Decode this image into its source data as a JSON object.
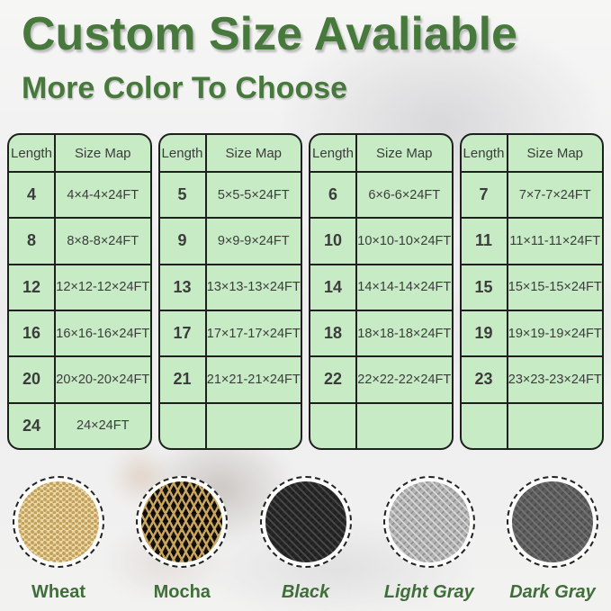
{
  "title": {
    "text": "Custom Size Avaliable"
  },
  "subtitle": {
    "text": "More Color To Choose"
  },
  "colors": {
    "heading_green": "#47793c",
    "label_green": "#3f6f38",
    "table_bg": "#c7ebc5",
    "table_border": "#1f1f1f",
    "cell_text": "#3c3c3c"
  },
  "size_tables": [
    {
      "headers": [
        "Length",
        "Size Map"
      ],
      "rows": [
        [
          "4",
          "4×4-4×24FT"
        ],
        [
          "8",
          "8×8-8×24FT"
        ],
        [
          "12",
          "12×12-12×24FT"
        ],
        [
          "16",
          "16×16-16×24FT"
        ],
        [
          "20",
          "20×20-20×24FT"
        ],
        [
          "24",
          "24×24FT"
        ]
      ]
    },
    {
      "headers": [
        "Length",
        "Size Map"
      ],
      "rows": [
        [
          "5",
          "5×5-5×24FT"
        ],
        [
          "9",
          "9×9-9×24FT"
        ],
        [
          "13",
          "13×13-13×24FT"
        ],
        [
          "17",
          "17×17-17×24FT"
        ],
        [
          "21",
          "21×21-21×24FT"
        ],
        [
          "",
          ""
        ]
      ]
    },
    {
      "headers": [
        "Length",
        "Size Map"
      ],
      "rows": [
        [
          "6",
          "6×6-6×24FT"
        ],
        [
          "10",
          "10×10-10×24FT"
        ],
        [
          "14",
          "14×14-14×24FT"
        ],
        [
          "18",
          "18×18-18×24FT"
        ],
        [
          "22",
          "22×22-22×24FT"
        ],
        [
          "",
          ""
        ]
      ]
    },
    {
      "headers": [
        "Length",
        "Size Map"
      ],
      "rows": [
        [
          "7",
          "7×7-7×24FT"
        ],
        [
          "11",
          "11×11-11×24FT"
        ],
        [
          "15",
          "15×15-15×24FT"
        ],
        [
          "19",
          "19×19-19×24FT"
        ],
        [
          "23",
          "23×23-23×24FT"
        ],
        [
          "",
          ""
        ]
      ]
    }
  ],
  "swatches": [
    {
      "label": "Wheat",
      "italic": false,
      "base": "#ead9a6",
      "accent": "#c2a05c"
    },
    {
      "label": "Mocha",
      "italic": false,
      "base": "#17140f",
      "accent": "#c9a55e"
    },
    {
      "label": "Black",
      "italic": true,
      "base": "#262626",
      "accent": "#4a4a4a"
    },
    {
      "label": "Light Gray",
      "italic": true,
      "base": "#b2b2b2",
      "accent": "#d8d8d8"
    },
    {
      "label": "Dark Gray",
      "italic": true,
      "base": "#5d5d5d",
      "accent": "#757575"
    }
  ]
}
